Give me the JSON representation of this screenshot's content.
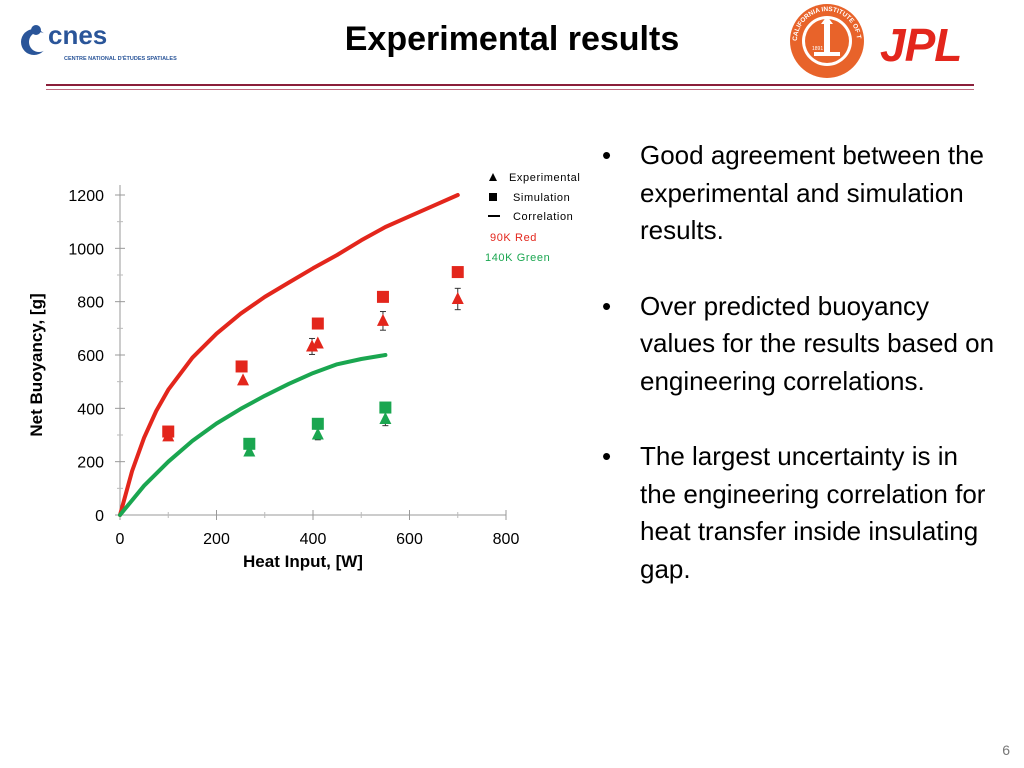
{
  "header": {
    "title": "Experimental results",
    "cnes_name": "cnes",
    "cnes_subtitle": "CENTRE NATIONAL D'ÉTUDES SPATIALES",
    "seal_text": "CALIFORNIA INSTITUTE OF TECHNOLOGY",
    "seal_year": "1891",
    "jpl_name": "JPL"
  },
  "colors": {
    "accent_rule": "#8a1f3a",
    "red_series": "#e3261c",
    "green_series": "#1aa650",
    "cnes_blue": "#2a5599",
    "seal_orange": "#e8632a"
  },
  "chart_data": {
    "type": "scatter",
    "xlabel": "Heat Input, [W]",
    "ylabel": "Net  Buoyancy, [g]",
    "xlim": [
      0,
      800
    ],
    "ylim": [
      0,
      1200
    ],
    "x_ticks": [
      "0",
      "200",
      "400",
      "600",
      "800"
    ],
    "y_ticks": [
      "0",
      "200",
      "400",
      "600",
      "800",
      "1000",
      "1200"
    ],
    "legend_position": "top-right",
    "legend": {
      "experimental": "Experimental",
      "simulation": "Simulation",
      "correlation": "Correlation",
      "red_note": "90K  Red",
      "green_note": "140K  Green"
    },
    "series": [
      {
        "name": "Experimental",
        "group": "90K",
        "color": "red",
        "marker": "triangle",
        "points": [
          [
            100,
            295
          ],
          [
            255,
            505
          ],
          [
            398,
            632
          ],
          [
            410,
            643
          ],
          [
            545,
            728
          ],
          [
            700,
            810
          ]
        ],
        "error": [
          0,
          0,
          30,
          0,
          35,
          40
        ]
      },
      {
        "name": "Simulation",
        "group": "90K",
        "color": "red",
        "marker": "square",
        "points": [
          [
            100,
            313
          ],
          [
            252,
            557
          ],
          [
            410,
            718
          ],
          [
            545,
            818
          ],
          [
            700,
            911
          ]
        ]
      },
      {
        "name": "Correlation",
        "group": "90K",
        "color": "red",
        "marker": "line",
        "points": [
          [
            0,
            0
          ],
          [
            25,
            165
          ],
          [
            50,
            290
          ],
          [
            75,
            390
          ],
          [
            100,
            470
          ],
          [
            150,
            590
          ],
          [
            200,
            680
          ],
          [
            250,
            755
          ],
          [
            300,
            818
          ],
          [
            350,
            872
          ],
          [
            400,
            925
          ],
          [
            450,
            975
          ],
          [
            500,
            1030
          ],
          [
            550,
            1080
          ],
          [
            600,
            1120
          ],
          [
            650,
            1160
          ],
          [
            700,
            1200
          ]
        ]
      },
      {
        "name": "Experimental",
        "group": "140K",
        "color": "green",
        "marker": "triangle",
        "points": [
          [
            268,
            238
          ],
          [
            410,
            302
          ],
          [
            550,
            360
          ]
        ],
        "error": [
          0,
          20,
          25
        ]
      },
      {
        "name": "Simulation",
        "group": "140K",
        "color": "green",
        "marker": "square",
        "points": [
          [
            268,
            267
          ],
          [
            410,
            342
          ],
          [
            550,
            403
          ]
        ]
      },
      {
        "name": "Correlation",
        "group": "140K",
        "color": "green",
        "marker": "line",
        "points": [
          [
            0,
            0
          ],
          [
            50,
            110
          ],
          [
            100,
            200
          ],
          [
            150,
            278
          ],
          [
            200,
            343
          ],
          [
            250,
            398
          ],
          [
            300,
            447
          ],
          [
            350,
            492
          ],
          [
            400,
            532
          ],
          [
            450,
            565
          ],
          [
            500,
            585
          ],
          [
            550,
            600
          ]
        ]
      }
    ]
  },
  "bullets": [
    "Good agreement between the experimental and simulation results.",
    "Over predicted buoyancy values for the results based on engineering correlations.",
    "The largest uncertainty is in the engineering correlation for heat transfer inside insulating gap."
  ],
  "bullet_symbol": "•",
  "page_number": "6"
}
